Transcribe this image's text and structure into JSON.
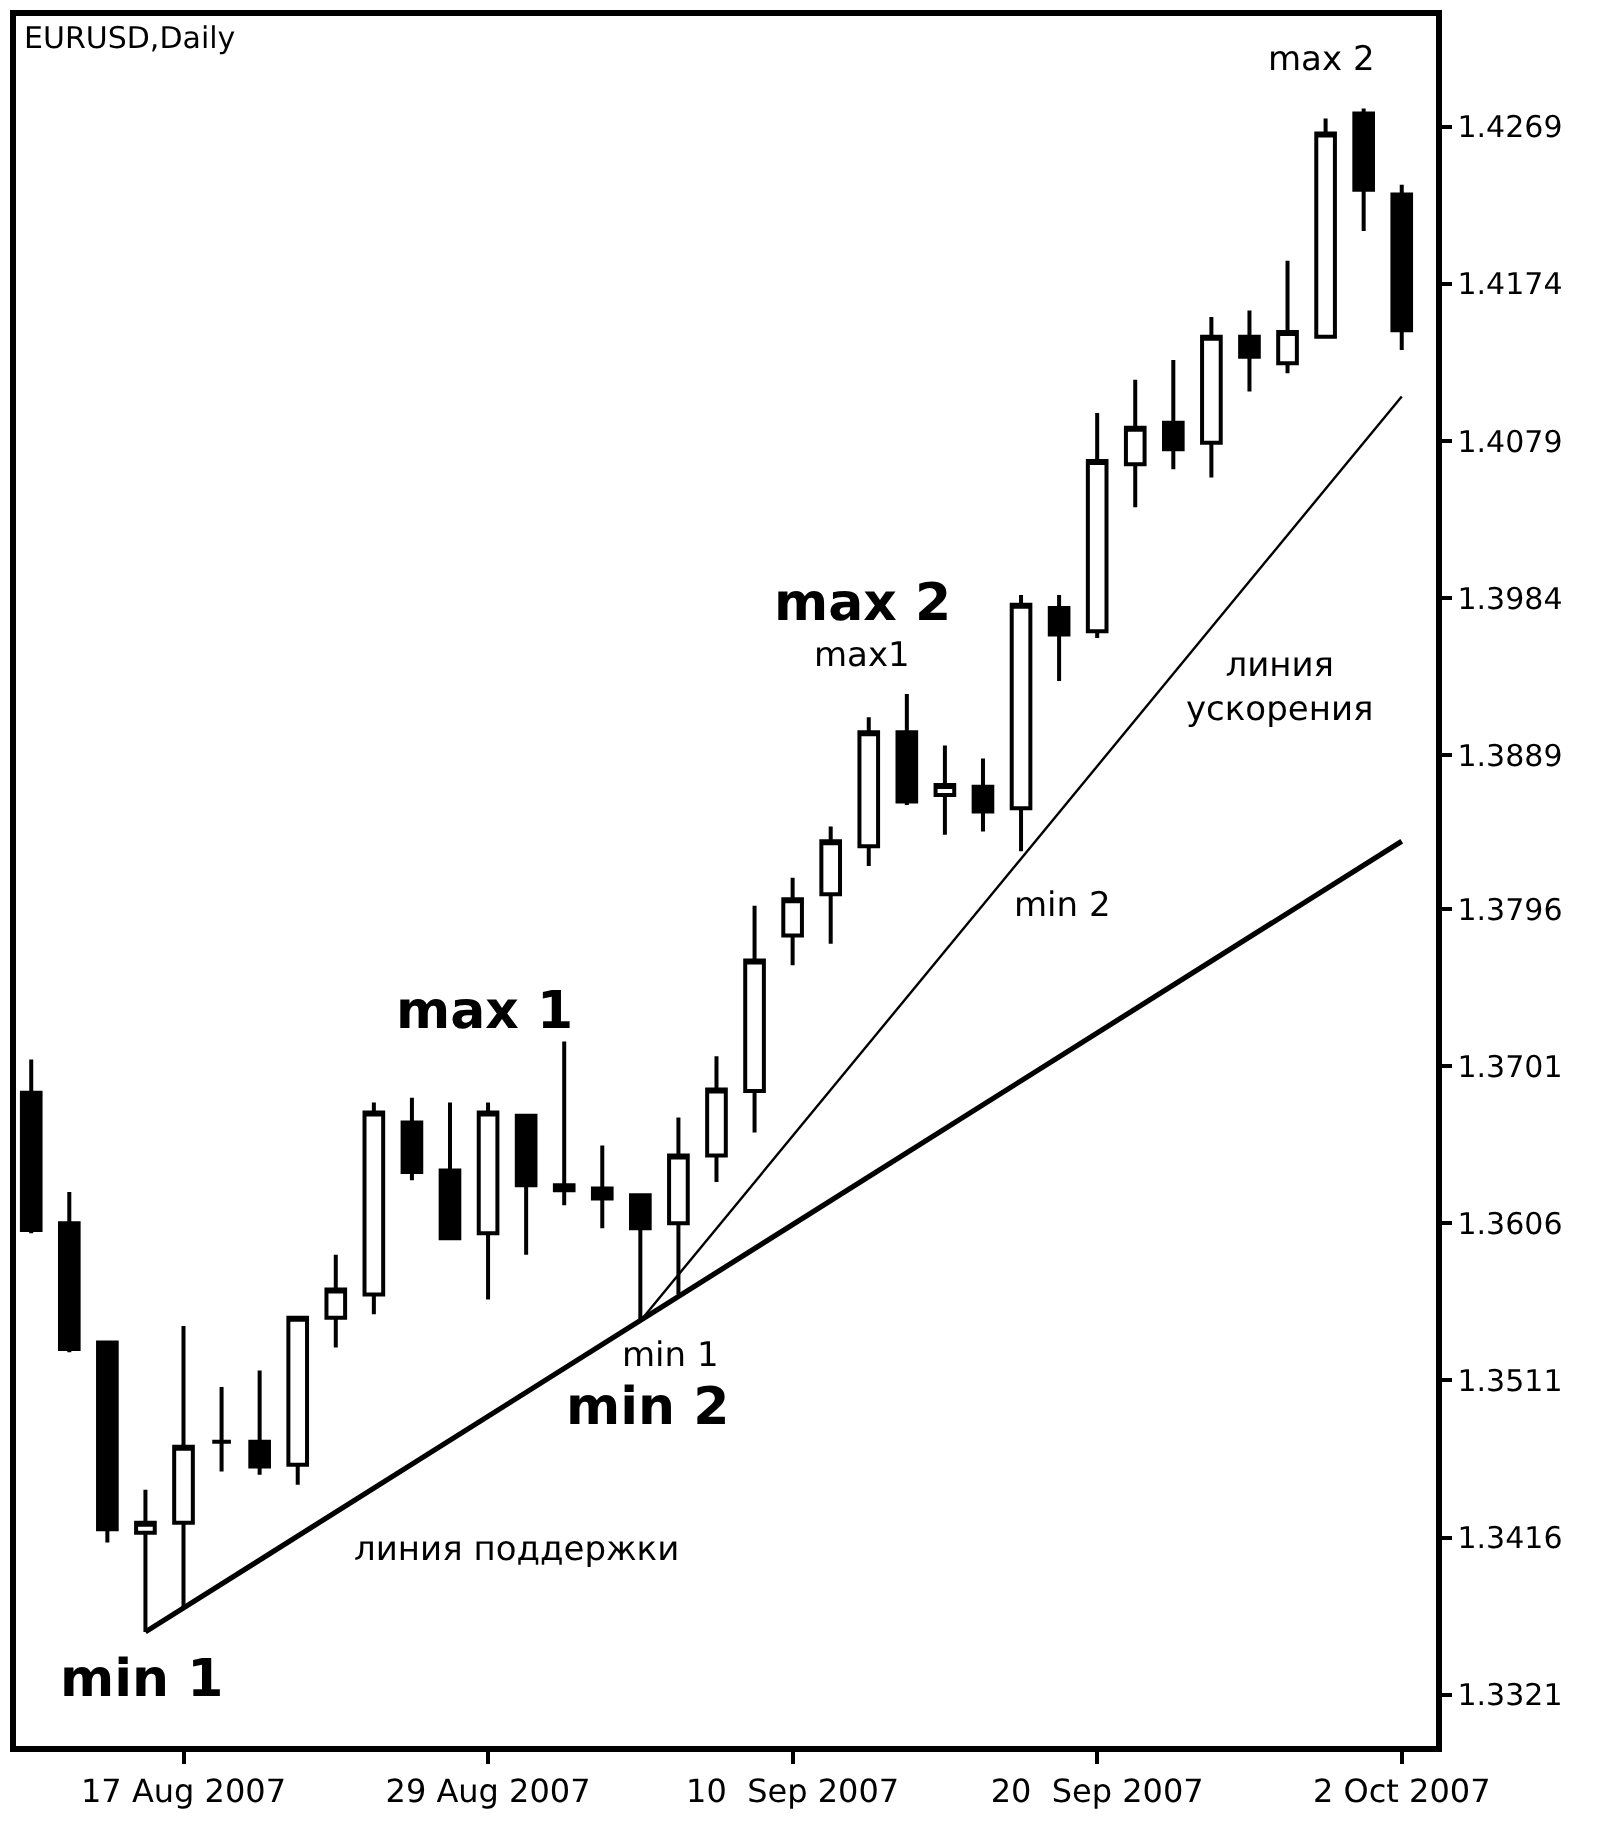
{
  "chart_data": {
    "type": "candlestick",
    "title": "EURUSD,Daily",
    "categories": [
      null,
      null,
      null,
      null,
      "17 Aug 2007",
      null,
      null,
      null,
      null,
      null,
      null,
      null,
      "29 Aug 2007",
      null,
      null,
      null,
      null,
      null,
      null,
      null,
      "10  Sep 2007",
      null,
      null,
      null,
      null,
      null,
      null,
      null,
      "20  Sep 2007",
      null,
      null,
      null,
      null,
      null,
      null,
      null,
      "2 Oct 2007"
    ],
    "ohlc": [
      [
        1.3685,
        1.3705,
        1.36,
        1.3602
      ],
      [
        1.3606,
        1.3625,
        1.3528,
        1.353
      ],
      [
        1.3534,
        1.3535,
        1.3413,
        1.3421
      ],
      [
        1.3419,
        1.3445,
        1.3359,
        1.3425
      ],
      [
        1.3425,
        1.3544,
        1.3374,
        1.3471
      ],
      [
        1.3474,
        1.3507,
        1.3456,
        1.3474
      ],
      [
        1.3474,
        1.3517,
        1.3454,
        1.3459
      ],
      [
        1.346,
        1.355,
        1.3448,
        1.3549
      ],
      [
        1.3549,
        1.3587,
        1.3531,
        1.3566
      ],
      [
        1.3563,
        1.3679,
        1.3551,
        1.3673
      ],
      [
        1.3667,
        1.3682,
        1.3632,
        1.3637
      ],
      [
        1.3638,
        1.3679,
        1.3596,
        1.3597
      ],
      [
        1.36,
        1.3679,
        1.356,
        1.3673
      ],
      [
        1.3671,
        1.3672,
        1.3587,
        1.3629
      ],
      [
        1.3629,
        1.3716,
        1.3617,
        1.3626
      ],
      [
        1.3627,
        1.3653,
        1.3603,
        1.3621
      ],
      [
        1.3623,
        1.3624,
        1.3547,
        1.3603
      ],
      [
        1.3606,
        1.367,
        1.3563,
        1.3647
      ],
      [
        1.3647,
        1.3707,
        1.3631,
        1.3687
      ],
      [
        1.3686,
        1.3798,
        1.3661,
        1.3765
      ],
      [
        1.378,
        1.3815,
        1.3762,
        1.3802
      ],
      [
        1.3805,
        1.3846,
        1.3775,
        1.3837
      ],
      [
        1.3834,
        1.3912,
        1.3822,
        1.3903
      ],
      [
        1.3903,
        1.3926,
        1.3859,
        1.3861
      ],
      [
        1.3865,
        1.3895,
        1.3841,
        1.3871
      ],
      [
        1.387,
        1.3887,
        1.3843,
        1.3855
      ],
      [
        1.3857,
        1.3986,
        1.3831,
        1.398
      ],
      [
        1.3978,
        1.3986,
        1.3934,
        1.3962
      ],
      [
        1.3964,
        1.4096,
        1.396,
        1.4067
      ],
      [
        1.4065,
        1.4116,
        1.4039,
        1.4087
      ],
      [
        1.409,
        1.4128,
        1.4062,
        1.4074
      ],
      [
        1.4078,
        1.4154,
        1.4057,
        1.4142
      ],
      [
        1.4142,
        1.4158,
        1.4109,
        1.413
      ],
      [
        1.4126,
        1.4188,
        1.412,
        1.4145
      ],
      [
        1.4142,
        1.4274,
        1.4141,
        1.4265
      ],
      [
        1.4277,
        1.428,
        1.4206,
        1.4231
      ],
      [
        1.4228,
        1.4234,
        1.4134,
        1.4146
      ]
    ],
    "colors": [
      "#000000",
      "#000000",
      "#000000",
      "#ffffff",
      "#ffffff",
      "#000000",
      "#000000",
      "#ffffff",
      "#ffffff",
      "#ffffff",
      "#000000",
      "#000000",
      "#ffffff",
      "#000000",
      "#000000",
      "#000000",
      "#000000",
      "#ffffff",
      "#ffffff",
      "#ffffff",
      "#ffffff",
      "#ffffff",
      "#ffffff",
      "#000000",
      "#ffffff",
      "#000000",
      "#ffffff",
      "#000000",
      "#ffffff",
      "#ffffff",
      "#000000",
      "#ffffff",
      "#000000",
      "#ffffff",
      "#ffffff",
      "#000000",
      "#000000"
    ],
    "series": [
      {
        "type": "line",
        "color": "#000000",
        "values": [
          null,
          null,
          null,
          1.3359,
          null,
          null,
          null,
          null,
          null,
          null,
          null,
          null,
          null,
          null,
          null,
          null,
          null,
          null,
          null,
          null,
          null,
          null,
          null,
          null,
          null,
          null,
          null,
          null,
          null,
          null,
          null,
          null,
          null,
          null,
          null,
          null,
          1.3837
        ]
      },
      {
        "type": "line",
        "color": "#000000",
        "values": [
          null,
          null,
          null,
          null,
          null,
          null,
          null,
          null,
          null,
          null,
          null,
          null,
          null,
          null,
          null,
          null,
          1.3547,
          null,
          null,
          null,
          null,
          null,
          null,
          null,
          null,
          null,
          null,
          null,
          null,
          null,
          null,
          null,
          null,
          null,
          null,
          null,
          1.4106
        ]
      }
    ],
    "ylim": [
      1.329,
      1.4336
    ],
    "yticks": [
      1.3321,
      1.3416,
      1.3511,
      1.3606,
      1.3701,
      1.3796,
      1.3889,
      1.3984,
      1.4079,
      1.4174,
      1.4269
    ],
    "annotations": [
      "min 1",
      "max 1",
      "min 1",
      "min 2",
      "max 2",
      "max1",
      "min 2",
      "max 2",
      "линия поддержки",
      "линия\nускорения"
    ]
  }
}
